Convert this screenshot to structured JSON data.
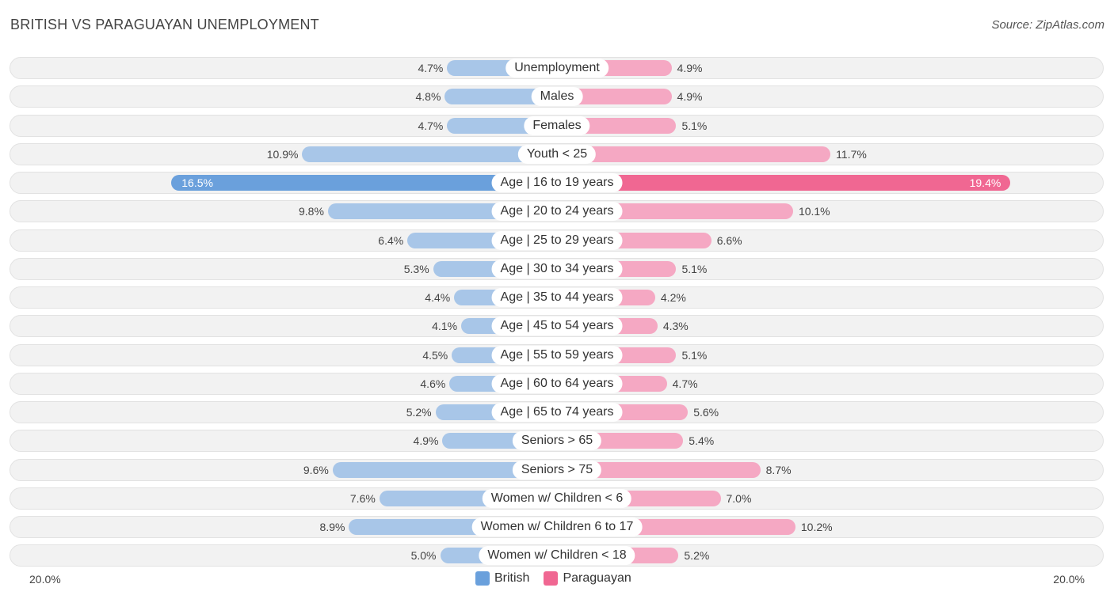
{
  "title": "BRITISH VS PARAGUAYAN UNEMPLOYMENT",
  "source": "Source: ZipAtlas.com",
  "colors": {
    "british": "#a8c6e8",
    "british_strong": "#6aa0dc",
    "paraguayan": "#f5a8c3",
    "paraguayan_strong": "#f06792"
  },
  "legend": {
    "british": "British",
    "paraguayan": "Paraguayan"
  },
  "axis": {
    "left_label": "20.0%",
    "right_label": "20.0%"
  },
  "chart_data": {
    "type": "bar",
    "orientation": "horizontal-diverging",
    "title": "BRITISH VS PARAGUAYAN UNEMPLOYMENT",
    "xlim": [
      0,
      20
    ],
    "unit": "%",
    "categories": [
      "Unemployment",
      "Males",
      "Females",
      "Youth < 25",
      "Age | 16 to 19 years",
      "Age | 20 to 24 years",
      "Age | 25 to 29 years",
      "Age | 30 to 34 years",
      "Age | 35 to 44 years",
      "Age | 45 to 54 years",
      "Age | 55 to 59 years",
      "Age | 60 to 64 years",
      "Age | 65 to 74 years",
      "Seniors > 65",
      "Seniors > 75",
      "Women w/ Children < 6",
      "Women w/ Children 6 to 17",
      "Women w/ Children < 18"
    ],
    "series": [
      {
        "name": "British",
        "values": [
          4.7,
          4.8,
          4.7,
          10.9,
          16.5,
          9.8,
          6.4,
          5.3,
          4.4,
          4.1,
          4.5,
          4.6,
          5.2,
          4.9,
          9.6,
          7.6,
          8.9,
          5.0
        ]
      },
      {
        "name": "Paraguayan",
        "values": [
          4.9,
          4.9,
          5.1,
          11.7,
          19.4,
          10.1,
          6.6,
          5.1,
          4.2,
          4.3,
          5.1,
          4.7,
          5.6,
          5.4,
          8.7,
          7.0,
          10.2,
          5.2
        ]
      }
    ],
    "value_labels": {
      "British": [
        "4.7%",
        "4.8%",
        "4.7%",
        "10.9%",
        "16.5%",
        "9.8%",
        "6.4%",
        "5.3%",
        "4.4%",
        "4.1%",
        "4.5%",
        "4.6%",
        "5.2%",
        "4.9%",
        "9.6%",
        "7.6%",
        "8.9%",
        "5.0%"
      ],
      "Paraguayan": [
        "4.9%",
        "4.9%",
        "5.1%",
        "11.7%",
        "19.4%",
        "10.1%",
        "6.6%",
        "5.1%",
        "4.2%",
        "4.3%",
        "5.1%",
        "4.7%",
        "5.6%",
        "5.4%",
        "8.7%",
        "7.0%",
        "10.2%",
        "5.2%"
      ]
    },
    "legend_position": "bottom-center"
  }
}
